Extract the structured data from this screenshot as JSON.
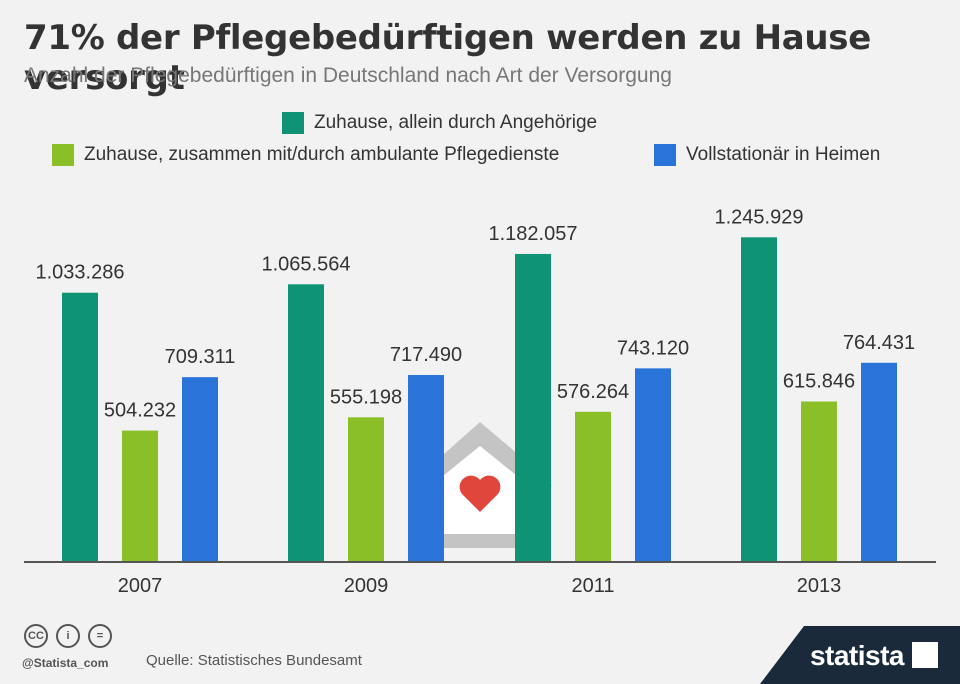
{
  "title": "71% der Pflegebedürftigen werden zu Hause versorgt",
  "subtitle": "Anzahl der Pflegebedürftigen in Deutschland nach Art der Versorgung",
  "legend": [
    {
      "label": "Zuhause, allein durch Angehörige",
      "color": "#0e9474"
    },
    {
      "label": "Zuhause, zusammen mit/durch ambulante Pflegedienste",
      "color": "#8abf27"
    },
    {
      "label": "Vollstationär in Heimen",
      "color": "#2a74d9"
    }
  ],
  "chart_data": {
    "type": "bar",
    "title": "71% der Pflegebedürftigen werden zu Hause versorgt",
    "subtitle": "Anzahl der Pflegebedürftigen in Deutschland nach Art der Versorgung",
    "categories": [
      "2007",
      "2009",
      "2011",
      "2013"
    ],
    "series": [
      {
        "name": "Zuhause, allein durch Angehörige",
        "color": "#0e9474",
        "values": [
          1033286,
          1065564,
          1182057,
          1245929
        ],
        "labels": [
          "1.033.286",
          "1.065.564",
          "1.182.057",
          "1.245.929"
        ]
      },
      {
        "name": "Zuhause, zusammen mit/durch ambulante Pflegedienste",
        "color": "#8abf27",
        "values": [
          504232,
          555198,
          576264,
          615846
        ],
        "labels": [
          "504.232",
          "555.198",
          "576.264",
          "615.846"
        ]
      },
      {
        "name": "Vollstationär in Heimen",
        "color": "#2a74d9",
        "values": [
          709311,
          717490,
          743120,
          764431
        ],
        "labels": [
          "709.311",
          "717.490",
          "743.120",
          "764.431"
        ]
      }
    ],
    "ylim": [
      0,
      1320000
    ],
    "grid": false,
    "legend_position": "top"
  },
  "footer": {
    "handle": "@Statista_com",
    "source": "Quelle: Statistisches Bundesamt",
    "brand": "statista"
  },
  "icons": {
    "cc": "CC",
    "by": "i",
    "nd": "="
  }
}
